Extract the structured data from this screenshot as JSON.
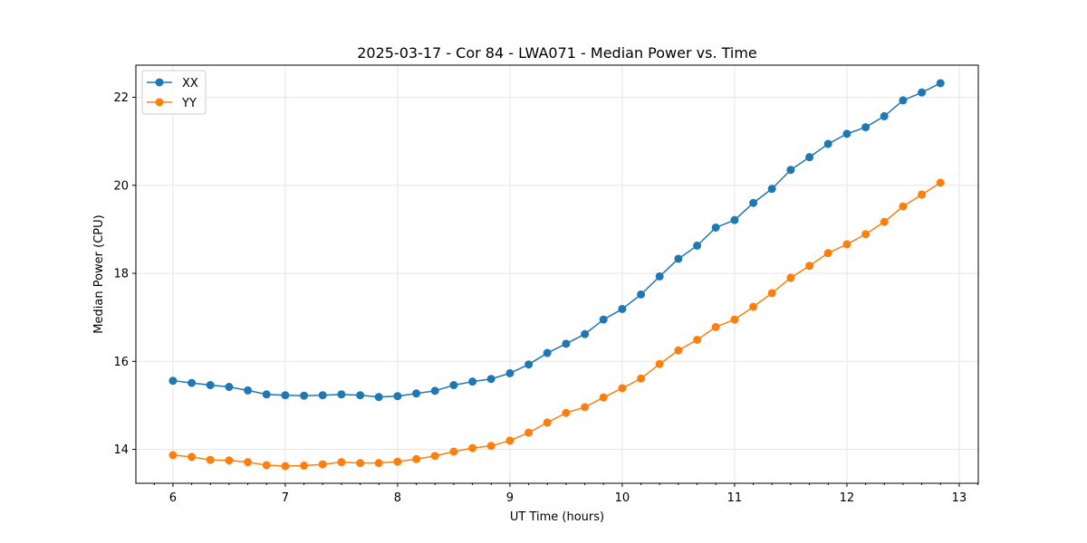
{
  "chart_data": {
    "type": "line",
    "title": "2025-03-17 - Cor 84 - LWA071 - Median Power vs. Time",
    "xlabel": "UT Time (hours)",
    "ylabel": "Median Power (CPU)",
    "xlim": [
      5.67,
      13.17
    ],
    "ylim": [
      13.23,
      22.73
    ],
    "xticks": [
      6,
      7,
      8,
      9,
      10,
      11,
      12,
      13
    ],
    "yticks": [
      14,
      16,
      18,
      20,
      22
    ],
    "grid": true,
    "legend_position": "top-left",
    "x": [
      6.0,
      6.167,
      6.333,
      6.5,
      6.667,
      6.833,
      7.0,
      7.167,
      7.333,
      7.5,
      7.667,
      7.833,
      8.0,
      8.167,
      8.333,
      8.5,
      8.667,
      8.833,
      9.0,
      9.167,
      9.333,
      9.5,
      9.667,
      9.833,
      10.0,
      10.167,
      10.333,
      10.5,
      10.667,
      10.833,
      11.0,
      11.167,
      11.333,
      11.5,
      11.667,
      11.833,
      12.0,
      12.167,
      12.333,
      12.5,
      12.667,
      12.833
    ],
    "series": [
      {
        "name": "XX",
        "color": "#1f77b4",
        "values": [
          15.56,
          15.51,
          15.46,
          15.42,
          15.34,
          15.25,
          15.23,
          15.22,
          15.23,
          15.25,
          15.23,
          15.19,
          15.21,
          15.27,
          15.33,
          15.46,
          15.54,
          15.6,
          15.73,
          15.93,
          16.19,
          16.4,
          16.62,
          16.95,
          17.19,
          17.52,
          17.93,
          18.33,
          18.63,
          19.04,
          19.21,
          19.6,
          19.92,
          20.35,
          20.64,
          20.94,
          21.17,
          21.32,
          21.57,
          21.93,
          22.11,
          22.32
        ]
      },
      {
        "name": "YY",
        "color": "#ff7f0e",
        "values": [
          13.87,
          13.83,
          13.76,
          13.75,
          13.71,
          13.64,
          13.62,
          13.63,
          13.66,
          13.71,
          13.69,
          13.69,
          13.72,
          13.78,
          13.85,
          13.95,
          14.03,
          14.08,
          14.2,
          14.38,
          14.61,
          14.83,
          14.96,
          15.18,
          15.39,
          15.61,
          15.94,
          16.25,
          16.49,
          16.78,
          16.95,
          17.24,
          17.55,
          17.9,
          18.17,
          18.46,
          18.66,
          18.89,
          19.17,
          19.52,
          19.79,
          20.06
        ]
      }
    ]
  }
}
